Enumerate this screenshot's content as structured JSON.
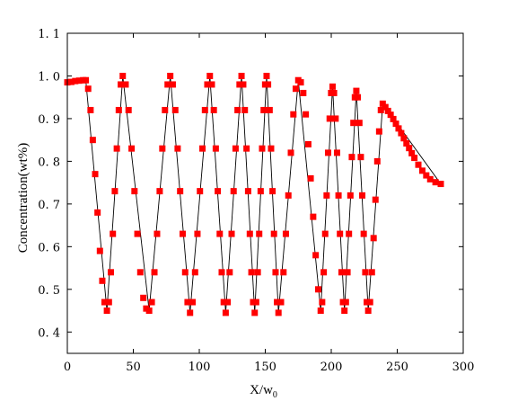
{
  "chart_data": {
    "type": "line",
    "xlabel": "X/w",
    "xlabel_subscript": "0",
    "ylabel": "Concentration(wt%)",
    "xlim": [
      0,
      300
    ],
    "ylim": [
      0.35,
      1.1
    ],
    "x_ticks": [
      0,
      50,
      100,
      150,
      200,
      250,
      300
    ],
    "x_tick_labels": [
      "0",
      "50",
      "100",
      "150",
      "200",
      "250",
      "300"
    ],
    "y_ticks": [
      0.4,
      0.5,
      0.6,
      0.7,
      0.8,
      0.9,
      1.0,
      1.1
    ],
    "y_tick_labels": [
      "0. 4",
      "0. 5",
      "0. 6",
      "0. 7",
      "0. 8",
      "0. 9",
      "1. 0",
      "1. 1"
    ],
    "grid": false,
    "legend": "none",
    "series_color": "#ff0000",
    "line_color": "#000000",
    "marker": "square",
    "segments": [
      {
        "x0": 0,
        "x1": 14,
        "y0": 0.985,
        "y1": 0.99
      },
      {
        "x0": 14,
        "x1": 30,
        "y0": 0.99,
        "y1": 0.45
      },
      {
        "x0": 30,
        "x1": 42,
        "y0": 0.45,
        "y1": 1.0
      },
      {
        "x0": 42,
        "x1": 62,
        "y0": 1.0,
        "y1": 0.45
      },
      {
        "x0": 62,
        "x1": 78,
        "y0": 0.45,
        "y1": 1.0
      },
      {
        "x0": 78,
        "x1": 93,
        "y0": 1.0,
        "y1": 0.445
      },
      {
        "x0": 93,
        "x1": 108,
        "y0": 0.445,
        "y1": 1.0
      },
      {
        "x0": 108,
        "x1": 120,
        "y0": 1.0,
        "y1": 0.445
      },
      {
        "x0": 120,
        "x1": 132,
        "y0": 0.445,
        "y1": 1.0
      },
      {
        "x0": 132,
        "x1": 142,
        "y0": 1.0,
        "y1": 0.445
      },
      {
        "x0": 142,
        "x1": 151,
        "y0": 0.445,
        "y1": 1.0
      },
      {
        "x0": 151,
        "x1": 160,
        "y0": 1.0,
        "y1": 0.445
      },
      {
        "x0": 160,
        "x1": 175,
        "y0": 0.445,
        "y1": 0.99
      },
      {
        "x0": 175,
        "x1": 192,
        "y0": 0.99,
        "y1": 0.45
      },
      {
        "x0": 192,
        "x1": 201,
        "y0": 0.45,
        "y1": 0.975
      },
      {
        "x0": 201,
        "x1": 210,
        "y0": 0.975,
        "y1": 0.45
      },
      {
        "x0": 210,
        "x1": 219,
        "y0": 0.45,
        "y1": 0.965
      },
      {
        "x0": 219,
        "x1": 228,
        "y0": 0.965,
        "y1": 0.45
      },
      {
        "x0": 228,
        "x1": 239,
        "y0": 0.45,
        "y1": 0.935
      },
      {
        "x0": 239,
        "x1": 283,
        "y0": 0.935,
        "y1": 0.747
      }
    ],
    "points": [
      [
        0,
        0.985
      ],
      [
        3,
        0.986
      ],
      [
        6,
        0.988
      ],
      [
        9,
        0.989
      ],
      [
        12,
        0.99
      ],
      [
        14,
        0.99
      ],
      [
        15.8,
        0.97
      ],
      [
        17.6,
        0.92
      ],
      [
        19.3,
        0.85
      ],
      [
        21.1,
        0.77
      ],
      [
        22.9,
        0.68
      ],
      [
        24.7,
        0.59
      ],
      [
        26.5,
        0.52
      ],
      [
        28.2,
        0.47
      ],
      [
        30,
        0.45
      ],
      [
        31.5,
        0.47
      ],
      [
        33,
        0.54
      ],
      [
        34.5,
        0.63
      ],
      [
        36,
        0.73
      ],
      [
        37.5,
        0.83
      ],
      [
        39,
        0.92
      ],
      [
        40.5,
        0.98
      ],
      [
        42,
        1.0
      ],
      [
        44.2,
        0.98
      ],
      [
        46.4,
        0.92
      ],
      [
        48.7,
        0.83
      ],
      [
        50.9,
        0.73
      ],
      [
        53.1,
        0.63
      ],
      [
        55.3,
        0.54
      ],
      [
        57.6,
        0.48
      ],
      [
        59.8,
        0.455
      ],
      [
        62,
        0.45
      ],
      [
        64,
        0.47
      ],
      [
        66,
        0.54
      ],
      [
        68,
        0.63
      ],
      [
        70,
        0.73
      ],
      [
        72,
        0.83
      ],
      [
        74,
        0.92
      ],
      [
        76,
        0.98
      ],
      [
        78,
        1.0
      ],
      [
        79.9,
        0.98
      ],
      [
        81.8,
        0.92
      ],
      [
        83.6,
        0.83
      ],
      [
        85.5,
        0.73
      ],
      [
        87.4,
        0.63
      ],
      [
        89.3,
        0.54
      ],
      [
        91.1,
        0.47
      ],
      [
        93,
        0.445
      ],
      [
        94.9,
        0.47
      ],
      [
        96.8,
        0.54
      ],
      [
        98.6,
        0.63
      ],
      [
        100.5,
        0.73
      ],
      [
        102.4,
        0.83
      ],
      [
        104.3,
        0.92
      ],
      [
        106.1,
        0.98
      ],
      [
        108,
        1.0
      ],
      [
        109.5,
        0.98
      ],
      [
        111,
        0.92
      ],
      [
        112.5,
        0.83
      ],
      [
        114,
        0.73
      ],
      [
        115.5,
        0.63
      ],
      [
        117,
        0.54
      ],
      [
        118.5,
        0.47
      ],
      [
        120,
        0.445
      ],
      [
        121.5,
        0.47
      ],
      [
        123,
        0.54
      ],
      [
        124.5,
        0.63
      ],
      [
        126,
        0.73
      ],
      [
        127.5,
        0.83
      ],
      [
        129,
        0.92
      ],
      [
        130.5,
        0.98
      ],
      [
        132,
        1.0
      ],
      [
        133.3,
        0.98
      ],
      [
        134.5,
        0.92
      ],
      [
        135.8,
        0.83
      ],
      [
        137,
        0.73
      ],
      [
        138.3,
        0.63
      ],
      [
        139.5,
        0.54
      ],
      [
        140.8,
        0.47
      ],
      [
        142,
        0.445
      ],
      [
        143.1,
        0.47
      ],
      [
        144.3,
        0.54
      ],
      [
        145.4,
        0.63
      ],
      [
        146.5,
        0.73
      ],
      [
        147.6,
        0.83
      ],
      [
        148.8,
        0.92
      ],
      [
        149.9,
        0.98
      ],
      [
        151,
        1.0
      ],
      [
        152.1,
        0.98
      ],
      [
        153.3,
        0.92
      ],
      [
        154.4,
        0.83
      ],
      [
        155.5,
        0.73
      ],
      [
        156.6,
        0.63
      ],
      [
        157.8,
        0.54
      ],
      [
        158.9,
        0.47
      ],
      [
        160,
        0.445
      ],
      [
        161.9,
        0.47
      ],
      [
        163.8,
        0.54
      ],
      [
        165.6,
        0.63
      ],
      [
        167.5,
        0.72
      ],
      [
        169.4,
        0.82
      ],
      [
        171.3,
        0.91
      ],
      [
        173.1,
        0.97
      ],
      [
        175,
        0.99
      ],
      [
        176.9,
        0.985
      ],
      [
        178.8,
        0.96
      ],
      [
        180.7,
        0.91
      ],
      [
        182.6,
        0.84
      ],
      [
        184.4,
        0.76
      ],
      [
        186.3,
        0.67
      ],
      [
        188.2,
        0.58
      ],
      [
        190.1,
        0.5
      ],
      [
        192,
        0.45
      ],
      [
        193.1,
        0.47
      ],
      [
        194.3,
        0.54
      ],
      [
        195.4,
        0.63
      ],
      [
        196.5,
        0.72
      ],
      [
        197.6,
        0.82
      ],
      [
        198.8,
        0.9
      ],
      [
        199.9,
        0.96
      ],
      [
        201,
        0.975
      ],
      [
        202.1,
        0.96
      ],
      [
        203.3,
        0.9
      ],
      [
        204.4,
        0.82
      ],
      [
        205.5,
        0.72
      ],
      [
        206.6,
        0.63
      ],
      [
        207.8,
        0.54
      ],
      [
        208.9,
        0.47
      ],
      [
        210,
        0.45
      ],
      [
        211.1,
        0.47
      ],
      [
        212.3,
        0.54
      ],
      [
        213.4,
        0.63
      ],
      [
        214.5,
        0.72
      ],
      [
        215.6,
        0.81
      ],
      [
        216.8,
        0.89
      ],
      [
        217.9,
        0.95
      ],
      [
        219,
        0.965
      ],
      [
        220.1,
        0.95
      ],
      [
        221.3,
        0.89
      ],
      [
        222.4,
        0.81
      ],
      [
        223.5,
        0.72
      ],
      [
        224.6,
        0.63
      ],
      [
        225.8,
        0.54
      ],
      [
        226.9,
        0.47
      ],
      [
        228,
        0.45
      ],
      [
        229.4,
        0.47
      ],
      [
        230.8,
        0.54
      ],
      [
        232.1,
        0.62
      ],
      [
        233.5,
        0.71
      ],
      [
        234.9,
        0.8
      ],
      [
        236.3,
        0.87
      ],
      [
        237.6,
        0.92
      ],
      [
        239,
        0.935
      ],
      [
        241,
        0.927
      ],
      [
        243,
        0.918
      ],
      [
        245,
        0.909
      ],
      [
        247,
        0.899
      ],
      [
        249,
        0.888
      ],
      [
        251,
        0.877
      ],
      [
        253,
        0.866
      ],
      [
        255,
        0.854
      ],
      [
        257,
        0.842
      ],
      [
        259,
        0.831
      ],
      [
        261,
        0.819
      ],
      [
        263,
        0.808
      ],
      [
        266,
        0.792
      ],
      [
        269,
        0.778
      ],
      [
        272,
        0.767
      ],
      [
        275,
        0.758
      ],
      [
        279,
        0.751
      ],
      [
        283,
        0.747
      ]
    ]
  }
}
